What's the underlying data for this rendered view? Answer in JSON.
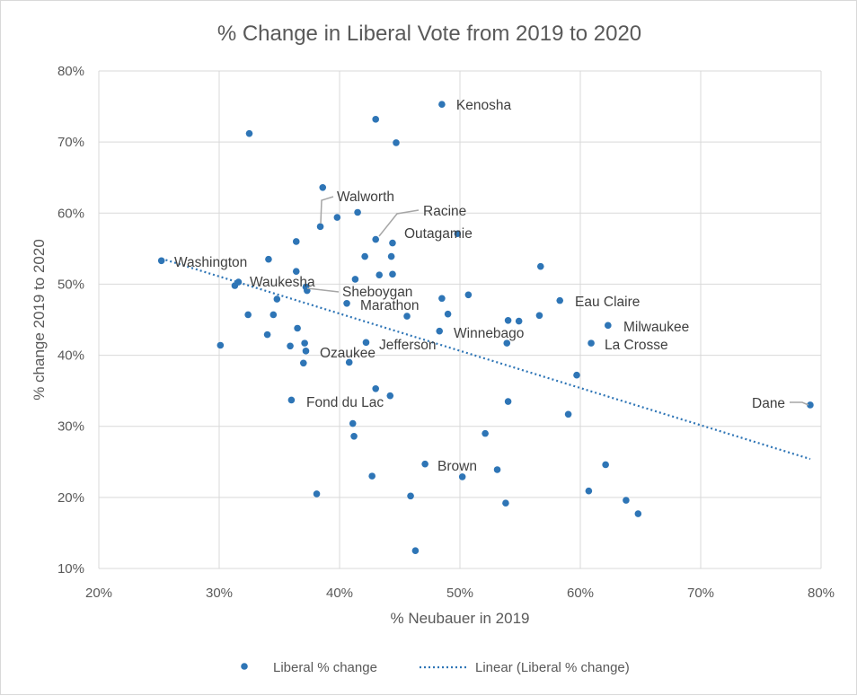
{
  "chart_data": {
    "type": "scatter",
    "title": "% Change in Liberal Vote from 2019 to 2020",
    "xlabel": "% Neubauer in 2019",
    "ylabel": "% change 2019 to 2020",
    "xlim": [
      20,
      80
    ],
    "ylim": [
      10,
      80
    ],
    "x_ticks": [
      "20%",
      "30%",
      "40%",
      "50%",
      "60%",
      "70%",
      "80%"
    ],
    "y_ticks": [
      "10%",
      "20%",
      "30%",
      "40%",
      "50%",
      "60%",
      "70%",
      "80%"
    ],
    "grid": true,
    "legend_position": "bottom",
    "colors": {
      "points": "#2e75b6",
      "trendline": "#2e75b6",
      "grid": "#d9d9d9",
      "text": "#595959"
    },
    "series": [
      {
        "name": "Liberal % change",
        "points": [
          {
            "x": 25.2,
            "y": 53.3
          },
          {
            "x": 30.1,
            "y": 41.4
          },
          {
            "x": 31.3,
            "y": 49.8
          },
          {
            "x": 31.6,
            "y": 50.3
          },
          {
            "x": 32.4,
            "y": 45.7
          },
          {
            "x": 32.5,
            "y": 71.2
          },
          {
            "x": 34.0,
            "y": 42.9
          },
          {
            "x": 34.1,
            "y": 53.5
          },
          {
            "x": 34.5,
            "y": 45.7
          },
          {
            "x": 34.8,
            "y": 47.9
          },
          {
            "x": 35.9,
            "y": 41.3
          },
          {
            "x": 36.0,
            "y": 33.7
          },
          {
            "x": 36.4,
            "y": 51.8
          },
          {
            "x": 36.4,
            "y": 56.0
          },
          {
            "x": 36.5,
            "y": 43.8
          },
          {
            "x": 37.0,
            "y": 38.9
          },
          {
            "x": 37.1,
            "y": 41.7
          },
          {
            "x": 37.2,
            "y": 49.6
          },
          {
            "x": 37.2,
            "y": 40.6
          },
          {
            "x": 37.3,
            "y": 49.1
          },
          {
            "x": 38.1,
            "y": 20.5
          },
          {
            "x": 38.4,
            "y": 58.1
          },
          {
            "x": 38.6,
            "y": 63.6
          },
          {
            "x": 39.8,
            "y": 59.4
          },
          {
            "x": 40.6,
            "y": 47.3
          },
          {
            "x": 40.8,
            "y": 39.0
          },
          {
            "x": 41.1,
            "y": 30.4
          },
          {
            "x": 41.2,
            "y": 28.6
          },
          {
            "x": 41.3,
            "y": 50.7
          },
          {
            "x": 41.5,
            "y": 60.1
          },
          {
            "x": 42.1,
            "y": 53.9
          },
          {
            "x": 42.2,
            "y": 41.8
          },
          {
            "x": 42.7,
            "y": 23.0
          },
          {
            "x": 43.0,
            "y": 73.2
          },
          {
            "x": 43.0,
            "y": 56.3
          },
          {
            "x": 43.0,
            "y": 35.3
          },
          {
            "x": 43.3,
            "y": 51.3
          },
          {
            "x": 44.2,
            "y": 34.3
          },
          {
            "x": 44.3,
            "y": 53.9
          },
          {
            "x": 44.4,
            "y": 51.4
          },
          {
            "x": 44.4,
            "y": 55.8
          },
          {
            "x": 44.7,
            "y": 69.9
          },
          {
            "x": 45.6,
            "y": 45.5
          },
          {
            "x": 45.9,
            "y": 20.2
          },
          {
            "x": 46.3,
            "y": 12.5
          },
          {
            "x": 47.1,
            "y": 24.7
          },
          {
            "x": 48.3,
            "y": 43.4
          },
          {
            "x": 48.5,
            "y": 48.0
          },
          {
            "x": 48.5,
            "y": 75.3
          },
          {
            "x": 49.0,
            "y": 45.8
          },
          {
            "x": 49.8,
            "y": 57.1
          },
          {
            "x": 50.2,
            "y": 22.9
          },
          {
            "x": 50.7,
            "y": 48.5
          },
          {
            "x": 52.1,
            "y": 29.0
          },
          {
            "x": 53.1,
            "y": 23.9
          },
          {
            "x": 53.8,
            "y": 19.2
          },
          {
            "x": 53.9,
            "y": 41.7
          },
          {
            "x": 54.0,
            "y": 44.9
          },
          {
            "x": 54.0,
            "y": 33.5
          },
          {
            "x": 54.9,
            "y": 44.8
          },
          {
            "x": 56.6,
            "y": 45.6
          },
          {
            "x": 56.7,
            "y": 52.5
          },
          {
            "x": 58.3,
            "y": 47.7
          },
          {
            "x": 59.0,
            "y": 31.7
          },
          {
            "x": 59.7,
            "y": 37.2
          },
          {
            "x": 60.7,
            "y": 20.9
          },
          {
            "x": 60.9,
            "y": 41.7
          },
          {
            "x": 62.1,
            "y": 24.6
          },
          {
            "x": 62.3,
            "y": 44.2
          },
          {
            "x": 63.8,
            "y": 19.6
          },
          {
            "x": 64.8,
            "y": 17.7
          },
          {
            "x": 79.1,
            "y": 33.0
          }
        ]
      },
      {
        "name": "Linear (Liberal % change)",
        "type": "trendline",
        "points": [
          {
            "x": 25.2,
            "y": 53.6
          },
          {
            "x": 79.1,
            "y": 25.4
          }
        ]
      }
    ],
    "annotations": [
      {
        "text": "Kenosha",
        "x": 48.5,
        "y": 75.3
      },
      {
        "text": "Walworth",
        "x": 38.4,
        "y": 58.1
      },
      {
        "text": "Racine",
        "x": 43.0,
        "y": 56.3
      },
      {
        "text": "Outagamie",
        "x": 49.8,
        "y": 57.1
      },
      {
        "text": "Washington",
        "x": 25.2,
        "y": 53.3
      },
      {
        "text": "Waukesha",
        "x": 31.6,
        "y": 50.3
      },
      {
        "text": "Sheboygan",
        "x": 37.2,
        "y": 49.6
      },
      {
        "text": "Marathon",
        "x": 40.6,
        "y": 47.3
      },
      {
        "text": "Eau Claire",
        "x": 58.3,
        "y": 47.7
      },
      {
        "text": "Milwaukee",
        "x": 62.3,
        "y": 44.2
      },
      {
        "text": "Winnebago",
        "x": 48.3,
        "y": 43.4
      },
      {
        "text": "La Crosse",
        "x": 60.9,
        "y": 41.7
      },
      {
        "text": "Jefferson",
        "x": 42.2,
        "y": 41.8
      },
      {
        "text": "Ozaukee",
        "x": 37.2,
        "y": 40.6
      },
      {
        "text": "Fond du Lac",
        "x": 36.0,
        "y": 33.7
      },
      {
        "text": "Dane",
        "x": 79.1,
        "y": 33.0
      },
      {
        "text": "Brown",
        "x": 47.1,
        "y": 24.7
      }
    ]
  }
}
